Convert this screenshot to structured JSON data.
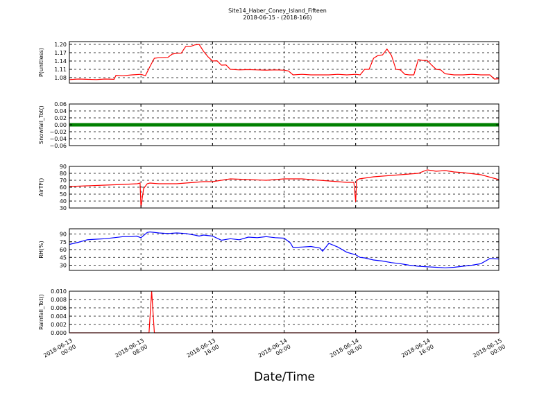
{
  "figure": {
    "title": "Site14_Haber_Coney_Island_Fifteen",
    "subtitle": "2018-06-15 - (2018-166)",
    "xlabel": "Date/Time",
    "x_ticks": [
      {
        "t": 0,
        "line1": "2018-06-13",
        "line2": "00:00"
      },
      {
        "t": 8,
        "line1": "2018-06-13",
        "line2": "08:00"
      },
      {
        "t": 16,
        "line1": "2018-06-13",
        "line2": "16:00"
      },
      {
        "t": 24,
        "line1": "2018-06-14",
        "line2": "00:00"
      },
      {
        "t": 32,
        "line1": "2018-06-14",
        "line2": "08:00"
      },
      {
        "t": 40,
        "line1": "2018-06-14",
        "line2": "16:00"
      },
      {
        "t": 48,
        "line1": "2018-06-15",
        "line2": "00:00"
      }
    ]
  },
  "chart_data": [
    {
      "type": "line",
      "ylabel": "P(unitless)",
      "ylim": [
        1.06,
        1.21
      ],
      "yticks": [
        1.08,
        1.11,
        1.14,
        1.17,
        1.2
      ],
      "ytick_labels": [
        "1.08",
        "1.11",
        "1.14",
        "1.17",
        "1.20"
      ],
      "color": "#ff0000",
      "grid": true,
      "x_hours": [
        0,
        1,
        2,
        3,
        4,
        5,
        5.2,
        6,
        7,
        8,
        8.5,
        9,
        9.5,
        10,
        11,
        11.5,
        12,
        12.5,
        13,
        13.5,
        14,
        14.5,
        15,
        15.5,
        16,
        16.5,
        17,
        17.5,
        18,
        19,
        20,
        21,
        22,
        23,
        24,
        24.5,
        25,
        26,
        27,
        28,
        29,
        30,
        31,
        32,
        32.5,
        33,
        33.5,
        34,
        34.5,
        35,
        35.5,
        36,
        36.5,
        37,
        37.5,
        38,
        38.5,
        39,
        39.5,
        40,
        40.5,
        41,
        41.5,
        42,
        42.5,
        43,
        43.5,
        44,
        45,
        46,
        47,
        47.5,
        48
      ],
      "y": [
        1.073,
        1.075,
        1.074,
        1.073,
        1.075,
        1.074,
        1.088,
        1.087,
        1.09,
        1.092,
        1.087,
        1.12,
        1.15,
        1.152,
        1.153,
        1.165,
        1.168,
        1.168,
        1.192,
        1.192,
        1.198,
        1.2,
        1.175,
        1.155,
        1.14,
        1.141,
        1.125,
        1.126,
        1.11,
        1.108,
        1.109,
        1.108,
        1.107,
        1.108,
        1.107,
        1.104,
        1.09,
        1.092,
        1.09,
        1.09,
        1.09,
        1.092,
        1.09,
        1.092,
        1.09,
        1.11,
        1.11,
        1.15,
        1.16,
        1.162,
        1.183,
        1.16,
        1.11,
        1.108,
        1.092,
        1.09,
        1.09,
        1.145,
        1.142,
        1.142,
        1.125,
        1.11,
        1.108,
        1.094,
        1.092,
        1.09,
        1.09,
        1.09,
        1.092,
        1.09,
        1.09,
        1.075,
        1.076
      ]
    },
    {
      "type": "scatter",
      "ylabel": "Snowfall_Tot()",
      "ylim": [
        -0.06,
        0.06
      ],
      "yticks": [
        -0.06,
        -0.04,
        -0.02,
        0.0,
        0.02,
        0.04,
        0.06
      ],
      "ytick_labels": [
        "−0.06",
        "−0.04",
        "−0.02",
        "0.00",
        "0.02",
        "0.04",
        "0.06"
      ],
      "color": "#008000",
      "grid": true,
      "x_hours": [
        0,
        48
      ],
      "y": [
        0.0,
        0.0
      ]
    },
    {
      "type": "line",
      "ylabel": "AirTF()",
      "ylim": [
        30,
        90
      ],
      "yticks": [
        30,
        40,
        50,
        60,
        70,
        80,
        90
      ],
      "ytick_labels": [
        "30",
        "40",
        "50",
        "60",
        "70",
        "80",
        "90"
      ],
      "color": "#ff0000",
      "grid": true,
      "x_hours": [
        0,
        2,
        4,
        6,
        7.6,
        7.9,
        8.0,
        8.3,
        8.7,
        9,
        10,
        12,
        14,
        15,
        16,
        17,
        18,
        20,
        22,
        24,
        26,
        28,
        30,
        31,
        31.8,
        32,
        32.1,
        32.4,
        34,
        36,
        38,
        39,
        40,
        40.5,
        41,
        42,
        42.5,
        43,
        44,
        46,
        48
      ],
      "y": [
        61,
        62,
        63,
        64,
        65,
        66,
        31,
        58,
        65,
        66,
        65,
        65,
        67,
        68,
        68,
        70,
        72,
        71,
        70,
        72,
        72,
        70,
        68,
        67,
        67,
        39,
        70,
        72,
        75,
        77,
        79,
        80,
        85,
        84,
        83,
        84,
        83,
        82,
        81,
        78,
        71
      ]
    },
    {
      "type": "line",
      "ylabel": "RH(%)",
      "ylim": [
        20,
        100
      ],
      "yticks": [
        30,
        45,
        60,
        75,
        90
      ],
      "ytick_labels": [
        "30",
        "45",
        "60",
        "75",
        "90"
      ],
      "color": "#0000ff",
      "grid": true,
      "x_hours": [
        0,
        1,
        2,
        3,
        4,
        5,
        6,
        7,
        7.5,
        8,
        8.7,
        9,
        10,
        11,
        12,
        13,
        14,
        14.5,
        15,
        16,
        17,
        18,
        19,
        20,
        21,
        22,
        23,
        24,
        24.7,
        25,
        26,
        27,
        28,
        28.3,
        29,
        30,
        31,
        32,
        32.5,
        33,
        34,
        35,
        36,
        37,
        38,
        39,
        40,
        41,
        42,
        43,
        44,
        45,
        46,
        47,
        48
      ],
      "y": [
        70,
        74,
        79,
        80,
        81,
        83,
        85,
        85,
        86,
        83,
        93,
        94,
        92,
        91,
        92,
        91,
        88,
        86,
        88,
        86,
        78,
        81,
        79,
        84,
        83,
        85,
        83,
        82,
        73,
        64,
        65,
        66,
        63,
        57,
        72,
        65,
        55,
        50,
        45,
        44,
        40,
        38,
        35,
        33,
        30,
        28,
        27,
        26,
        25,
        26,
        28,
        30,
        33,
        43,
        42
      ]
    },
    {
      "type": "line",
      "ylabel": "Rainfall_Tot()",
      "ylim": [
        0.0,
        0.01
      ],
      "yticks": [
        0.0,
        0.002,
        0.004,
        0.006,
        0.008,
        0.01
      ],
      "ytick_labels": [
        "0.000",
        "0.002",
        "0.004",
        "0.006",
        "0.008",
        "0.010"
      ],
      "color": "#ff0000",
      "grid": true,
      "x_hours": [
        0,
        8.9,
        9.2,
        9.5,
        48
      ],
      "y": [
        0.0,
        0.0,
        0.01,
        0.0,
        0.0
      ]
    }
  ]
}
